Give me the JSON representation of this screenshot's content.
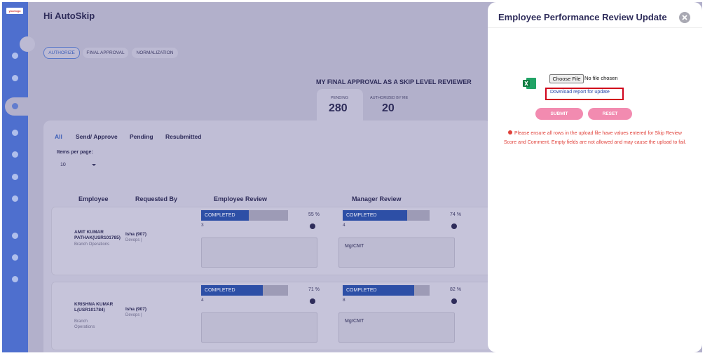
{
  "header": {
    "logo": "yourlogo",
    "greeting": "Hi AutoSkip"
  },
  "tabs": [
    "AUTHORIZE",
    "FINAL APPROVAL",
    "NORMALIZATION"
  ],
  "summary": {
    "title": "MY FINAL APPROVAL AS A SKIP LEVEL REVIEWER",
    "stats": [
      {
        "label": "PENDING",
        "value": 280
      },
      {
        "label": "AUTHORIZED BY ME",
        "value": 20
      }
    ]
  },
  "filters": [
    "All",
    "Send/ Approve",
    "Pending",
    "Resubmitted"
  ],
  "items_per_page": {
    "label": "Items per page:",
    "value": 10
  },
  "table": {
    "columns": [
      "Employee",
      "Requested By",
      "Employee Review",
      "Manager Review"
    ],
    "rows": [
      {
        "employee": "AMIT KUMAR PATHAK(USR101785)",
        "department": "Branch Operations",
        "requested_by": "Isha (907)",
        "team": "Devops |",
        "employee_review": {
          "status": "COMPLETED",
          "progress": {
            "value": 55,
            "label": "55 %"
          },
          "score": 3
        },
        "manager_review": {
          "status": "COMPLETED",
          "progress": {
            "value": 74,
            "label": "74 %"
          },
          "score": 4,
          "comment": "MgrCMT"
        }
      },
      {
        "employee": "KRISHNA KUMAR L(USR101784)",
        "department": "Branch Operations",
        "requested_by": "Isha (907)",
        "team": "Devops |",
        "employee_review": {
          "status": "COMPLETED",
          "progress": {
            "value": 71,
            "label": "71 %"
          },
          "score": 4
        },
        "manager_review": {
          "status": "COMPLETED",
          "progress": {
            "value": 82,
            "label": "82 %"
          },
          "score": 8,
          "comment": "MgrCMT"
        }
      }
    ]
  },
  "modal": {
    "title": "Employee Performance Review Update",
    "choose_file": "Choose File",
    "no_file": "No file chosen",
    "download_link": "Download report for update",
    "submit": "SUBMIT",
    "reset": "RESET",
    "warning": "Please ensure all rows in the upload file have values entered for Skip Review Score and Comment. Empty fields are not allowed and may cause the upload to fail."
  }
}
